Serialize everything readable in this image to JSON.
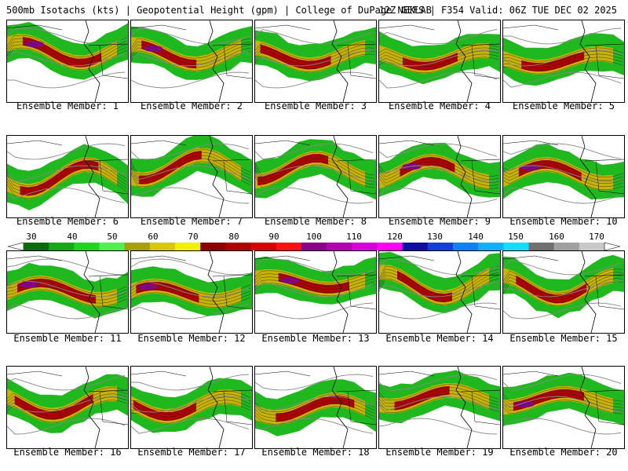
{
  "header": {
    "left": "500mb Isotachs (kts) | Geopotential Height (gpm) | College of DuPage NEXLAB",
    "right": "12Z GEFS | F354 Valid: 06Z TUE DEC 02 2025"
  },
  "members": [
    {
      "label": "Ensemble Member: 1"
    },
    {
      "label": "Ensemble Member: 2"
    },
    {
      "label": "Ensemble Member: 3"
    },
    {
      "label": "Ensemble Member: 4"
    },
    {
      "label": "Ensemble Member: 5"
    },
    {
      "label": "Ensemble Member: 6"
    },
    {
      "label": "Ensemble Member: 7"
    },
    {
      "label": "Ensemble Member: 8"
    },
    {
      "label": "Ensemble Member: 9"
    },
    {
      "label": "Ensemble Member: 10"
    },
    {
      "label": "Ensemble Member: 11"
    },
    {
      "label": "Ensemble Member: 12"
    },
    {
      "label": "Ensemble Member: 13"
    },
    {
      "label": "Ensemble Member: 14"
    },
    {
      "label": "Ensemble Member: 15"
    },
    {
      "label": "Ensemble Member: 16"
    },
    {
      "label": "Ensemble Member: 17"
    },
    {
      "label": "Ensemble Member: 18"
    },
    {
      "label": "Ensemble Member: 19"
    },
    {
      "label": "Ensemble Member: 20"
    }
  ],
  "colorbar": {
    "labels": [
      "30",
      "40",
      "50",
      "60",
      "70",
      "80",
      "90",
      "100",
      "110",
      "120",
      "130",
      "140",
      "150",
      "160",
      "170"
    ],
    "colors": [
      "#0a6b0a",
      "#17a817",
      "#1fd61f",
      "#50f050",
      "#a8a000",
      "#d8c800",
      "#f0f000",
      "#8a0000",
      "#b00000",
      "#d80000",
      "#ff1010",
      "#8a008a",
      "#b000b0",
      "#d800d8",
      "#ff00ff",
      "#1010a0",
      "#1040d8",
      "#1080ff",
      "#10b0ff",
      "#10e0ff",
      "#707070",
      "#a0a0a0",
      "#c8c8c8"
    ]
  }
}
